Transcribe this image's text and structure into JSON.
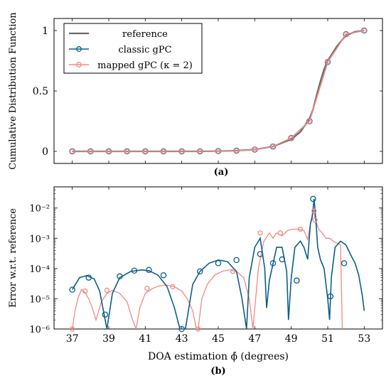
{
  "chart_data": [
    {
      "type": "line",
      "panel_label": "(a)",
      "ylabel": "Cumulative Distribution Function",
      "xlim": [
        36,
        54
      ],
      "ylim": [
        -0.1,
        1.1
      ],
      "yticks": [
        0,
        0.5,
        1
      ],
      "ytick_labels": [
        "0",
        "0.5",
        "1"
      ],
      "legend_position": "top-left",
      "series": [
        {
          "name": "reference",
          "color": "#6b6b6b",
          "marker": "none",
          "x": [
            37,
            38,
            39,
            40,
            41,
            42,
            43,
            44,
            45,
            46,
            47,
            48,
            49,
            49.5,
            50,
            50.2,
            50.4,
            50.6,
            50.8,
            51,
            51.5,
            52,
            52.5,
            53
          ],
          "y": [
            0,
            0,
            0,
            0,
            0,
            0,
            0,
            0,
            0.002,
            0.006,
            0.015,
            0.04,
            0.1,
            0.16,
            0.27,
            0.35,
            0.47,
            0.58,
            0.68,
            0.75,
            0.87,
            0.96,
            0.99,
            1
          ]
        },
        {
          "name": "classic gPC",
          "color": "#0c5e8c",
          "marker": "circle",
          "x": [
            37,
            38,
            39,
            40,
            41,
            42,
            43,
            44,
            45,
            46,
            47,
            48,
            49,
            50,
            51,
            52,
            53
          ],
          "y": [
            0,
            0,
            0,
            0,
            0,
            0,
            0,
            0,
            0.002,
            0.006,
            0.015,
            0.04,
            0.11,
            0.25,
            0.74,
            0.97,
            1
          ]
        },
        {
          "name": "mapped gPC (κ = 2)",
          "color": "#f08a84",
          "marker": "circle",
          "x": [
            37,
            38,
            39,
            40,
            41,
            42,
            43,
            44,
            45,
            46,
            47,
            48,
            49,
            50,
            51,
            52,
            53
          ],
          "y": [
            0,
            0,
            0,
            0,
            0,
            0,
            0,
            0,
            0.002,
            0.006,
            0.015,
            0.04,
            0.11,
            0.25,
            0.74,
            0.97,
            1
          ]
        }
      ]
    },
    {
      "type": "line",
      "panel_label": "(b)",
      "ylabel": "Error w.r.t. reference",
      "xlabel": "DOA estimation ϕ̂ (degrees)",
      "xlim": [
        36,
        54
      ],
      "xticks": [
        37,
        39,
        41,
        43,
        45,
        47,
        49,
        51,
        53
      ],
      "yscale": "log",
      "ylim": [
        1e-06,
        0.05
      ],
      "ytick_labels": [
        "10⁻⁶",
        "10⁻⁵",
        "10⁻⁴",
        "10⁻³",
        "10⁻²"
      ],
      "series": [
        {
          "name": "classic gPC",
          "color": "#0c5e8c",
          "marker": "circle",
          "x": [
            37,
            37.4,
            37.8,
            38.2,
            38.5,
            38.8,
            38.9,
            39.2,
            39.6,
            40.2,
            40.8,
            41.2,
            41.7,
            42.2,
            42.6,
            42.9,
            43.05,
            43.2,
            43.6,
            44,
            44.5,
            45,
            45.5,
            46,
            46.3,
            46.55,
            46.7,
            47,
            47.3,
            47.55,
            47.65,
            47.8,
            48.2,
            48.5,
            48.75,
            48.85,
            49,
            49.2,
            49.5,
            49.7,
            49.9,
            50.05,
            50.15,
            50.25,
            50.35,
            50.45,
            50.6,
            50.8,
            51.0,
            51.1,
            51.2,
            51.4,
            51.7,
            52.0,
            52.3,
            52.5,
            52.7,
            52.9,
            53
          ],
          "y": [
            2e-05,
            5e-05,
            5.8e-05,
            4.5e-05,
            1.8e-05,
            2e-06,
            1e-06,
            1.5e-05,
            5e-05,
            8e-05,
            9e-05,
            8.5e-05,
            6e-05,
            2.5e-05,
            5e-06,
            1e-06,
            1e-06,
            1e-06,
            3e-05,
            8e-05,
            0.00015,
            0.00019,
            0.00017,
            8e-05,
            1e-05,
            1e-06,
            5e-05,
            0.0005,
            0.001,
            0.0001,
            5e-06,
            4e-05,
            0.0005,
            0.0005,
            8e-05,
            2e-06,
            5e-05,
            0.0005,
            0.0008,
            0.0005,
            0.0002,
            0.003,
            0.005,
            0.02,
            0.004,
            0.0005,
            0.0002,
            0.0001,
            1e-05,
            2e-06,
            5e-05,
            0.0005,
            0.0008,
            0.0006,
            0.00025,
            0.00015,
            6e-05,
            1.2e-05,
            4e-06
          ],
          "marker_x": [
            37,
            37.9,
            38.8,
            39.6,
            40.4,
            41.2,
            42,
            43,
            44,
            45,
            46,
            47.3,
            48,
            48.5,
            49.3,
            50.2,
            51.15,
            51.9
          ],
          "marker_y": [
            2e-05,
            5e-05,
            3e-06,
            5.5e-05,
            8.5e-05,
            9e-05,
            6e-05,
            1e-06,
            8e-05,
            0.00015,
            0.00019,
            0.0003,
            0.00015,
            0.0002,
            4e-05,
            0.02,
            1.2e-05,
            0.00015
          ]
        },
        {
          "name": "mapped gPC (κ = 2)",
          "color": "#f08a84",
          "marker": "circle",
          "x": [
            37,
            37.15,
            37.3,
            37.5,
            37.7,
            37.9,
            38.1,
            38.3,
            38.6,
            38.9,
            39.2,
            39.6,
            40.0,
            40.3,
            40.5,
            40.7,
            41.0,
            41.4,
            41.8,
            42.2,
            42.6,
            43.0,
            43.3,
            43.6,
            43.8,
            43.9,
            44.1,
            44.4,
            44.8,
            45.2,
            45.6,
            46.0,
            46.4,
            46.7,
            46.9,
            47.05,
            47.2,
            47.5,
            47.8,
            48.0,
            48.2,
            48.5,
            48.8,
            49.1,
            49.4,
            49.7,
            49.9,
            50.05,
            50.2,
            50.3,
            50.4,
            50.5,
            50.7,
            50.9,
            51.1,
            51.3,
            51.5,
            51.7,
            51.8
          ],
          "y": [
            1e-06,
            4e-06,
            1e-05,
            2e-05,
            1.6e-05,
            1e-05,
            5e-06,
            2e-06,
            8e-06,
            1.5e-05,
            1.9e-05,
            1.5e-05,
            8e-06,
            2e-06,
            5e-07,
            5e-06,
            1.5e-05,
            2.2e-05,
            2.7e-05,
            2.8e-05,
            2.5e-05,
            1.8e-05,
            1e-05,
            4e-06,
            1e-06,
            1e-06,
            1e-05,
            3e-05,
            6e-05,
            8e-05,
            9e-05,
            8e-05,
            5e-05,
            1e-05,
            1e-06,
            1e-05,
            0.0001,
            0.0008,
            0.0015,
            0.001,
            0.0015,
            0.0012,
            0.0018,
            0.002,
            0.002,
            0.0018,
            0.0009,
            0.003,
            0.009,
            0.005,
            0.003,
            0.002,
            0.0015,
            0.001,
            0.001,
            0.0008,
            0.0007,
            0.0006,
            1e-06
          ],
          "marker_x": [
            37,
            37.7,
            38.9,
            41.1,
            42.5,
            43.9,
            45.8,
            47.3,
            48.4,
            49.5,
            50.25,
            50.3
          ],
          "marker_y": [
            1e-06,
            1.8e-05,
            1.9e-05,
            2.2e-05,
            2.5e-05,
            1e-06,
            8e-05,
            0.0015,
            0.0015,
            0.002,
            0.008,
            0.004
          ]
        }
      ]
    }
  ]
}
